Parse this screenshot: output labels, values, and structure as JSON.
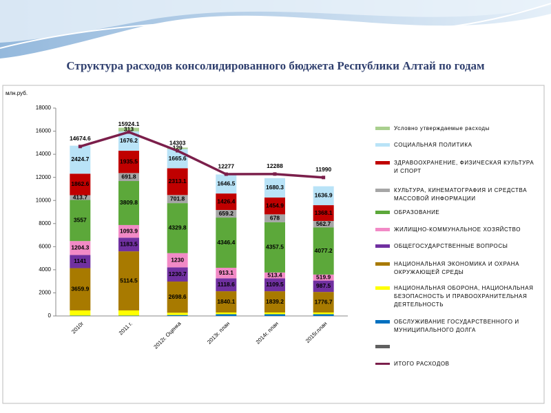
{
  "chart_data": {
    "type": "stacked_bar_line",
    "title": "Структура расходов консолидированного бюджета Республики Алтай по годам",
    "y_label": "млн.руб.",
    "categories": [
      "2010г",
      "2011 г.",
      "2012г. Оценка",
      "2013г. план",
      "2014г. план",
      "2015г.план"
    ],
    "ylim": [
      0,
      18000
    ],
    "yticks": [
      0,
      2000,
      4000,
      6000,
      8000,
      10000,
      12000,
      14000,
      16000,
      18000
    ],
    "grid": false,
    "series": [
      {
        "name": "ОБСЛУЖИВАНИЕ ГОСУДАРСТВЕННОГО И МУНИЦИПАЛЬНОГО ДОЛГА",
        "color": "#0070c0",
        "show_labels": false,
        "values": [
          30,
          30,
          80,
          150,
          150,
          150
        ]
      },
      {
        "name": "НАЦИОНАЛЬНАЯ ОБОРОНА, НАЦИОНАЛЬНАЯ БЕЗОПАСНОСТЬ И ПРАВООХРАНИТЕЛЬНАЯ ДЕЯТЕЛЬНОСТЬ",
        "color": "#ffff00",
        "show_labels": false,
        "values": [
          450,
          450,
          200,
          150,
          150,
          150
        ]
      },
      {
        "name": "НАЦИОНАЛЬНАЯ ЭКОНОМИКА И ОХРАНА ОКРУЖАЮЩЕЙ СРЕДЫ",
        "color": "#a87a00",
        "show_labels": true,
        "values": [
          3659.9,
          5114.5,
          2698.6,
          1840.1,
          1839.2,
          1776.7
        ]
      },
      {
        "name": "ОБЩЕГОСУДАРСТВЕННЫЕ ВОПРОСЫ",
        "color": "#7030a0",
        "show_labels": true,
        "values": [
          1141,
          1183.5,
          1230.7,
          1118.6,
          1109.5,
          987.5
        ]
      },
      {
        "name": "ЖИЛИЩНО-КОММУНАЛЬНОЕ ХОЗЯЙСТВО",
        "color": "#f28ac6",
        "show_labels": true,
        "values": [
          1204.3,
          1093.9,
          1230,
          913.1,
          513.4,
          519.9
        ]
      },
      {
        "name": "ОБРАЗОВАНИЕ",
        "color": "#5ca83a",
        "show_labels": true,
        "values": [
          3557,
          3809.8,
          4329.8,
          4346.4,
          4357.5,
          4077.2
        ]
      },
      {
        "name": "КУЛЬТУРА, КИНЕМАТОГРАФИЯ И СРЕДСТВА МАССОВОЙ ИНФОРМАЦИИ",
        "color": "#a6a6a6",
        "show_labels": true,
        "values": [
          413.7,
          691.8,
          701.8,
          659.2,
          678,
          562.7
        ]
      },
      {
        "name": "ЗДРАВООХРАНЕНИЕ, ФИЗИЧЕСКАЯ КУЛЬТУРА И СПОРТ",
        "color": "#c00000",
        "show_labels": true,
        "values": [
          1862.6,
          1935.5,
          2313.1,
          1426.4,
          1454.9,
          1368.1
        ]
      },
      {
        "name": "СОЦИАЛЬНАЯ ПОЛИТИКА",
        "color": "#b9e3f7",
        "show_labels": true,
        "values": [
          2424.7,
          1676.2,
          1665.6,
          1646.5,
          1680.3,
          1636.9
        ]
      },
      {
        "name": "Условно утверждаемые расходы",
        "color": "#a9cf8e",
        "show_labels": true,
        "values": [
          null,
          313,
          129,
          null,
          null,
          null
        ]
      }
    ],
    "total": {
      "name": "ИТОГО РАСХОДОВ",
      "color": "#7b1f4b",
      "values": [
        14674.6,
        15924.1,
        14303,
        12277,
        12288,
        11990
      ]
    }
  }
}
